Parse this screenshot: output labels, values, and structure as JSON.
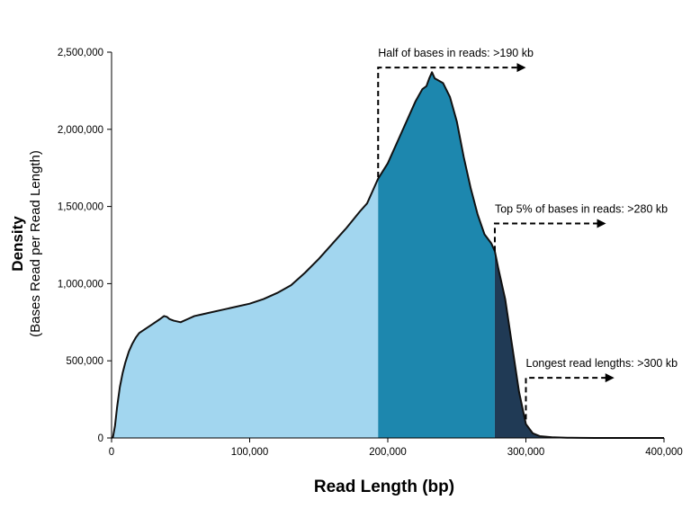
{
  "chart_data": {
    "type": "area",
    "xlabel": "Read Length (bp)",
    "ylabel_main": "Density",
    "ylabel_sub": "(Bases Read per Read Length)",
    "xlim": [
      0,
      400000
    ],
    "ylim": [
      0,
      2500000
    ],
    "x_ticks": [
      0,
      100000,
      200000,
      300000,
      400000
    ],
    "x_tick_labels": [
      "0",
      "100,000",
      "200,000",
      "300,000",
      "400,000"
    ],
    "y_ticks": [
      0,
      500000,
      1000000,
      1500000,
      2000000,
      2500000
    ],
    "y_tick_labels": [
      "0",
      "500,000",
      "1,000,000",
      "1,500,000",
      "2,000,000",
      "2,500,000"
    ],
    "grid": false,
    "x": [
      0,
      1000,
      2500,
      4000,
      6000,
      8000,
      10000,
      12500,
      15000,
      17500,
      20000,
      25000,
      30000,
      35000,
      38000,
      40000,
      42000,
      45000,
      50000,
      55000,
      60000,
      65000,
      70000,
      80000,
      90000,
      100000,
      110000,
      120000,
      130000,
      140000,
      150000,
      160000,
      170000,
      180000,
      185000,
      190000,
      193000,
      200000,
      210000,
      220000,
      225000,
      228000,
      230000,
      232000,
      234000,
      236000,
      240000,
      245000,
      250000,
      255000,
      260000,
      265000,
      270000,
      275000,
      277500,
      280000,
      285000,
      290000,
      295000,
      300000,
      305000,
      310000,
      320000,
      330000,
      340000,
      350000,
      360000,
      380000,
      400000
    ],
    "y": [
      0,
      5000,
      80000,
      200000,
      330000,
      420000,
      490000,
      560000,
      610000,
      650000,
      680000,
      710000,
      740000,
      770000,
      790000,
      785000,
      770000,
      760000,
      750000,
      770000,
      790000,
      800000,
      810000,
      830000,
      850000,
      870000,
      900000,
      940000,
      990000,
      1070000,
      1160000,
      1260000,
      1360000,
      1470000,
      1520000,
      1620000,
      1680000,
      1780000,
      1980000,
      2180000,
      2260000,
      2280000,
      2330000,
      2370000,
      2330000,
      2320000,
      2300000,
      2210000,
      2050000,
      1820000,
      1620000,
      1450000,
      1320000,
      1260000,
      1210000,
      1100000,
      900000,
      600000,
      300000,
      90000,
      30000,
      12000,
      4000,
      1500,
      600,
      200,
      80,
      10,
      0
    ],
    "regions": [
      {
        "from": 0,
        "to": 193000,
        "color": "#a2d6ef"
      },
      {
        "from": 193000,
        "to": 277500,
        "color": "#1d87ae"
      },
      {
        "from": 277500,
        "to": 400000,
        "color": "#203a55"
      }
    ],
    "outline_color": "#111111",
    "annotations": [
      {
        "text": "Half of bases in reads: >190 kb",
        "x": 193000,
        "y_start": 1690000,
        "y_level": 2400000,
        "arrow_to_x": 300000
      },
      {
        "text": "Top 5% of bases in reads: >280 kb",
        "x": 277500,
        "y_start": 1210000,
        "y_level": 1390000,
        "arrow_to_x": 358000
      },
      {
        "text": "Longest read lengths: >300 kb",
        "x": 300000,
        "y_start": 120000,
        "y_level": 390000,
        "arrow_to_x": 364000
      }
    ]
  }
}
